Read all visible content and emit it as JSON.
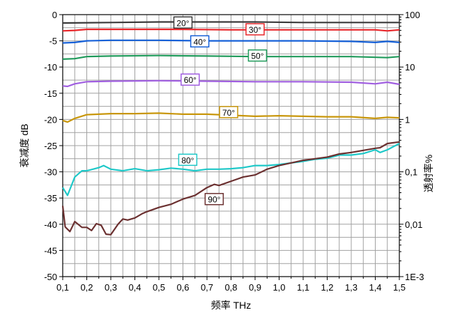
{
  "chart_data": {
    "type": "line",
    "xlabel": "频率 THz",
    "ylabel": "衰减度 dB",
    "y2label": "透射率%",
    "xlim": [
      0.1,
      1.5
    ],
    "ylim": [
      -50,
      0
    ],
    "xticks": [
      "0,1",
      "0,2",
      "0,3",
      "0,4",
      "0,5",
      "0,6",
      "0,7",
      "0,8",
      "0,9",
      "1,0",
      "1,1",
      "1,2",
      "1,3",
      "1,4",
      "1,5"
    ],
    "yticks": [
      "0",
      "-5",
      "-10",
      "-15",
      "-20",
      "-25",
      "-30",
      "-35",
      "-40",
      "-45",
      "-50"
    ],
    "y2ticks": [
      "100",
      "10",
      "1",
      "0,1",
      "0,01",
      "1E-3"
    ],
    "grid": true,
    "series": [
      {
        "name": "20°",
        "color": "#3a3a3a",
        "x": [
          0.1,
          0.3,
          0.5,
          0.7,
          0.9,
          1.1,
          1.3,
          1.5
        ],
        "y": [
          -1.6,
          -1.5,
          -1.4,
          -1.4,
          -1.4,
          -1.5,
          -1.5,
          -1.5
        ]
      },
      {
        "name": "30°",
        "color": "#e8262a",
        "x": [
          0.1,
          0.15,
          0.2,
          0.4,
          0.6,
          0.8,
          1.0,
          1.2,
          1.4,
          1.45,
          1.5
        ],
        "y": [
          -3.1,
          -3.0,
          -2.8,
          -2.8,
          -2.8,
          -2.9,
          -2.9,
          -2.9,
          -2.9,
          -3.1,
          -2.9
        ]
      },
      {
        "name": "40°",
        "color": "#1560d8",
        "x": [
          0.1,
          0.15,
          0.2,
          0.3,
          0.5,
          0.7,
          0.9,
          1.1,
          1.3,
          1.4,
          1.45,
          1.5
        ],
        "y": [
          -5.4,
          -5.3,
          -5.0,
          -4.9,
          -4.9,
          -5.0,
          -5.0,
          -5.0,
          -5.1,
          -5.3,
          -5.1,
          -5.3
        ]
      },
      {
        "name": "50°",
        "color": "#1f9a5a",
        "x": [
          0.1,
          0.15,
          0.2,
          0.3,
          0.5,
          0.7,
          0.9,
          1.1,
          1.3,
          1.45,
          1.5
        ],
        "y": [
          -8.5,
          -8.4,
          -8.0,
          -7.9,
          -7.8,
          -7.9,
          -8.0,
          -8.0,
          -8.0,
          -8.2,
          -8.0
        ]
      },
      {
        "name": "60°",
        "color": "#a05ee0",
        "x": [
          0.1,
          0.12,
          0.15,
          0.2,
          0.3,
          0.5,
          0.7,
          0.9,
          1.1,
          1.3,
          1.4,
          1.45,
          1.5
        ],
        "y": [
          -13.6,
          -13.7,
          -13.2,
          -12.8,
          -12.7,
          -12.6,
          -12.7,
          -12.8,
          -12.8,
          -12.9,
          -13.2,
          -12.9,
          -13.3
        ]
      },
      {
        "name": "70°",
        "color": "#c8960a",
        "x": [
          0.1,
          0.12,
          0.15,
          0.2,
          0.3,
          0.4,
          0.5,
          0.6,
          0.7,
          0.8,
          0.9,
          1.0,
          1.1,
          1.2,
          1.3,
          1.4,
          1.45,
          1.5
        ],
        "y": [
          -20.2,
          -20.5,
          -19.8,
          -19.1,
          -18.9,
          -18.9,
          -18.8,
          -19.0,
          -19.0,
          -19.2,
          -19.4,
          -19.3,
          -19.4,
          -19.5,
          -19.5,
          -19.8,
          -19.6,
          -19.7
        ]
      },
      {
        "name": "80°",
        "color": "#1ec8c8",
        "x": [
          0.1,
          0.12,
          0.15,
          0.18,
          0.2,
          0.25,
          0.27,
          0.3,
          0.35,
          0.4,
          0.45,
          0.5,
          0.55,
          0.6,
          0.65,
          0.7,
          0.75,
          0.8,
          0.85,
          0.9,
          0.95,
          1.0,
          1.05,
          1.1,
          1.15,
          1.2,
          1.25,
          1.3,
          1.35,
          1.4,
          1.42,
          1.45,
          1.5
        ],
        "y": [
          -33,
          -34.5,
          -31,
          -29.8,
          -29.8,
          -29.2,
          -28.8,
          -29.5,
          -29.8,
          -29.4,
          -29.8,
          -29.6,
          -29.3,
          -29.5,
          -29.8,
          -29.5,
          -29.5,
          -29.4,
          -29.2,
          -28.8,
          -28.8,
          -28.6,
          -28.3,
          -28,
          -27.6,
          -27.4,
          -26.8,
          -26.8,
          -26.5,
          -25.8,
          -26.3,
          -25.8,
          -24.6
        ]
      },
      {
        "name": "90°",
        "color": "#6b3030",
        "x": [
          0.1,
          0.11,
          0.13,
          0.15,
          0.18,
          0.2,
          0.22,
          0.24,
          0.26,
          0.28,
          0.3,
          0.33,
          0.35,
          0.37,
          0.4,
          0.43,
          0.45,
          0.5,
          0.55,
          0.6,
          0.65,
          0.7,
          0.73,
          0.75,
          0.8,
          0.85,
          0.9,
          0.95,
          1.0,
          1.05,
          1.1,
          1.15,
          1.2,
          1.25,
          1.3,
          1.35,
          1.4,
          1.42,
          1.45,
          1.5
        ],
        "y": [
          -36.5,
          -40.5,
          -41.4,
          -39.5,
          -40.6,
          -40.6,
          -41.2,
          -39.9,
          -40.2,
          -41.9,
          -42,
          -40,
          -39,
          -39.2,
          -38.8,
          -38,
          -37.6,
          -36.8,
          -36.2,
          -35.2,
          -34.5,
          -33,
          -32.4,
          -32.6,
          -31.8,
          -31,
          -30.6,
          -29.5,
          -28.8,
          -28.3,
          -27.8,
          -27.5,
          -27.2,
          -26.6,
          -26.3,
          -25.9,
          -25.5,
          -25.4,
          -24.6,
          -24.3
        ]
      }
    ]
  }
}
